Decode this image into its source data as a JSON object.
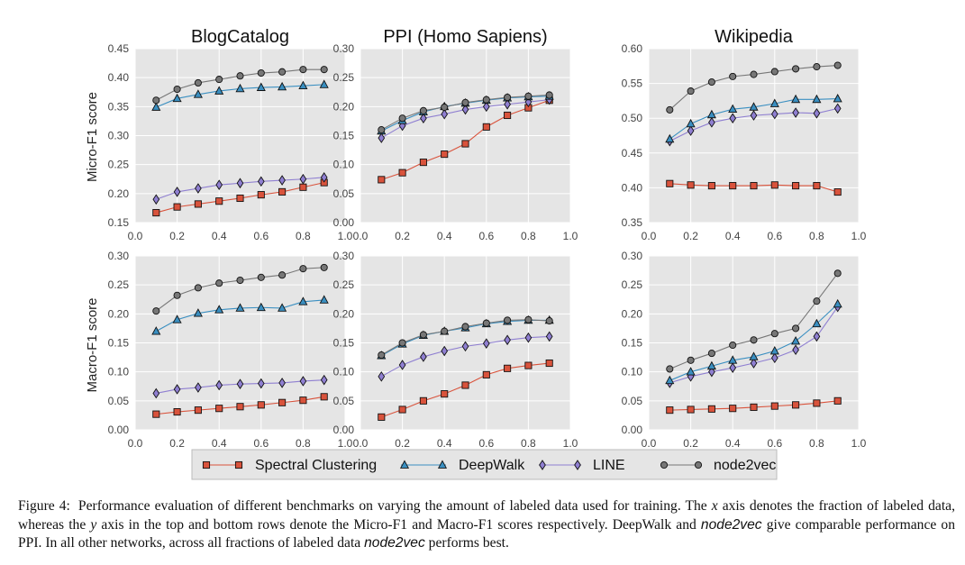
{
  "figure": {
    "row_ylabels": [
      "Micro-F1 score",
      "Macro-F1 score"
    ],
    "legend": [
      {
        "name": "Spectral Clustering",
        "color": "#d9533c",
        "marker": "square"
      },
      {
        "name": "DeepWalk",
        "color": "#3a8fc1",
        "marker": "triangle"
      },
      {
        "name": "LINE",
        "color": "#8f7fd1",
        "marker": "diamond"
      },
      {
        "name": "node2vec",
        "color": "#777777",
        "marker": "circle"
      }
    ]
  },
  "chart_data": [
    {
      "type": "line",
      "title": "BlogCatalog",
      "metric": "Micro-F1",
      "x": [
        0.1,
        0.2,
        0.3,
        0.4,
        0.5,
        0.6,
        0.7,
        0.8,
        0.9
      ],
      "xlim": [
        0.0,
        1.0
      ],
      "ylim": [
        0.15,
        0.45
      ],
      "xticks": [
        "0.0",
        "0.2",
        "0.4",
        "0.6",
        "0.8",
        "1.0"
      ],
      "yticks": [
        "0.15",
        "0.20",
        "0.25",
        "0.30",
        "0.35",
        "0.40",
        "0.45"
      ],
      "series": [
        {
          "name": "Spectral Clustering",
          "values": [
            0.167,
            0.177,
            0.182,
            0.187,
            0.192,
            0.198,
            0.203,
            0.211,
            0.219
          ]
        },
        {
          "name": "DeepWalk",
          "values": [
            0.349,
            0.364,
            0.371,
            0.377,
            0.381,
            0.383,
            0.384,
            0.386,
            0.388
          ]
        },
        {
          "name": "LINE",
          "values": [
            0.19,
            0.203,
            0.209,
            0.215,
            0.218,
            0.221,
            0.223,
            0.225,
            0.228
          ]
        },
        {
          "name": "node2vec",
          "values": [
            0.361,
            0.38,
            0.391,
            0.397,
            0.403,
            0.408,
            0.41,
            0.414,
            0.414
          ]
        }
      ]
    },
    {
      "type": "line",
      "title": "PPI (Homo Sapiens)",
      "metric": "Micro-F1",
      "x": [
        0.1,
        0.2,
        0.3,
        0.4,
        0.5,
        0.6,
        0.7,
        0.8,
        0.9
      ],
      "xlim": [
        0.0,
        1.0
      ],
      "ylim": [
        0.0,
        0.3
      ],
      "xticks": [
        "0.0",
        "0.2",
        "0.4",
        "0.6",
        "0.8",
        "1.0"
      ],
      "yticks": [
        "0.00",
        "0.05",
        "0.10",
        "0.15",
        "0.20",
        "0.25",
        "0.30"
      ],
      "series": [
        {
          "name": "Spectral Clustering",
          "values": [
            0.074,
            0.086,
            0.104,
            0.118,
            0.136,
            0.165,
            0.185,
            0.198,
            0.211
          ]
        },
        {
          "name": "DeepWalk",
          "values": [
            0.158,
            0.176,
            0.191,
            0.2,
            0.206,
            0.211,
            0.215,
            0.217,
            0.218
          ]
        },
        {
          "name": "LINE",
          "values": [
            0.146,
            0.167,
            0.18,
            0.187,
            0.195,
            0.2,
            0.204,
            0.208,
            0.212
          ]
        },
        {
          "name": "node2vec",
          "values": [
            0.16,
            0.18,
            0.193,
            0.199,
            0.207,
            0.212,
            0.216,
            0.218,
            0.22
          ]
        }
      ]
    },
    {
      "type": "line",
      "title": "Wikipedia",
      "metric": "Micro-F1",
      "x": [
        0.1,
        0.2,
        0.3,
        0.4,
        0.5,
        0.6,
        0.7,
        0.8,
        0.9
      ],
      "xlim": [
        0.0,
        1.0
      ],
      "ylim": [
        0.35,
        0.6
      ],
      "xticks": [
        "0.0",
        "0.2",
        "0.4",
        "0.6",
        "0.8",
        "1.0"
      ],
      "yticks": [
        "0.35",
        "0.40",
        "0.45",
        "0.50",
        "0.55",
        "0.60"
      ],
      "series": [
        {
          "name": "Spectral Clustering",
          "values": [
            0.406,
            0.404,
            0.403,
            0.403,
            0.403,
            0.404,
            0.403,
            0.403,
            0.394
          ]
        },
        {
          "name": "DeepWalk",
          "values": [
            0.47,
            0.492,
            0.505,
            0.513,
            0.516,
            0.521,
            0.527,
            0.527,
            0.528
          ]
        },
        {
          "name": "LINE",
          "values": [
            0.467,
            0.482,
            0.494,
            0.5,
            0.504,
            0.506,
            0.508,
            0.507,
            0.514
          ]
        },
        {
          "name": "node2vec",
          "values": [
            0.512,
            0.539,
            0.552,
            0.56,
            0.563,
            0.567,
            0.571,
            0.574,
            0.576
          ]
        }
      ]
    },
    {
      "type": "line",
      "title": "",
      "metric": "Macro-F1",
      "x": [
        0.1,
        0.2,
        0.3,
        0.4,
        0.5,
        0.6,
        0.7,
        0.8,
        0.9
      ],
      "xlim": [
        0.0,
        1.0
      ],
      "ylim": [
        0.0,
        0.3
      ],
      "xticks": [
        "0.0",
        "0.2",
        "0.4",
        "0.6",
        "0.8",
        "1.0"
      ],
      "yticks": [
        "0.00",
        "0.05",
        "0.10",
        "0.15",
        "0.20",
        "0.25",
        "0.30"
      ],
      "series": [
        {
          "name": "Spectral Clustering",
          "values": [
            0.027,
            0.031,
            0.034,
            0.037,
            0.04,
            0.043,
            0.047,
            0.051,
            0.057
          ]
        },
        {
          "name": "DeepWalk",
          "values": [
            0.17,
            0.19,
            0.201,
            0.207,
            0.21,
            0.211,
            0.21,
            0.221,
            0.224
          ]
        },
        {
          "name": "LINE",
          "values": [
            0.063,
            0.07,
            0.073,
            0.077,
            0.079,
            0.08,
            0.081,
            0.084,
            0.086
          ]
        },
        {
          "name": "node2vec",
          "values": [
            0.205,
            0.232,
            0.245,
            0.253,
            0.258,
            0.263,
            0.267,
            0.278,
            0.28
          ]
        }
      ]
    },
    {
      "type": "line",
      "title": "",
      "metric": "Macro-F1",
      "x": [
        0.1,
        0.2,
        0.3,
        0.4,
        0.5,
        0.6,
        0.7,
        0.8,
        0.9
      ],
      "xlim": [
        0.0,
        1.0
      ],
      "ylim": [
        0.0,
        0.3
      ],
      "xticks": [
        "0.0",
        "0.2",
        "0.4",
        "0.6",
        "0.8",
        "1.0"
      ],
      "yticks": [
        "0.00",
        "0.05",
        "0.10",
        "0.15",
        "0.20",
        "0.25",
        "0.30"
      ],
      "series": [
        {
          "name": "Spectral Clustering",
          "values": [
            0.022,
            0.035,
            0.05,
            0.062,
            0.077,
            0.095,
            0.106,
            0.111,
            0.115
          ]
        },
        {
          "name": "DeepWalk",
          "values": [
            0.128,
            0.148,
            0.163,
            0.17,
            0.176,
            0.183,
            0.187,
            0.189,
            0.189
          ]
        },
        {
          "name": "LINE",
          "values": [
            0.092,
            0.112,
            0.126,
            0.136,
            0.144,
            0.149,
            0.155,
            0.159,
            0.161
          ]
        },
        {
          "name": "node2vec",
          "values": [
            0.129,
            0.15,
            0.164,
            0.17,
            0.178,
            0.184,
            0.189,
            0.19,
            0.188
          ]
        }
      ]
    },
    {
      "type": "line",
      "title": "",
      "metric": "Macro-F1",
      "x": [
        0.1,
        0.2,
        0.3,
        0.4,
        0.5,
        0.6,
        0.7,
        0.8,
        0.9
      ],
      "xlim": [
        0.0,
        1.0
      ],
      "ylim": [
        0.0,
        0.3
      ],
      "xticks": [
        "0.0",
        "0.2",
        "0.4",
        "0.6",
        "0.8",
        "1.0"
      ],
      "yticks": [
        "0.00",
        "0.05",
        "0.10",
        "0.15",
        "0.20",
        "0.25",
        "0.30"
      ],
      "series": [
        {
          "name": "Spectral Clustering",
          "values": [
            0.034,
            0.035,
            0.036,
            0.037,
            0.039,
            0.041,
            0.043,
            0.046,
            0.05
          ]
        },
        {
          "name": "DeepWalk",
          "values": [
            0.085,
            0.1,
            0.11,
            0.12,
            0.126,
            0.136,
            0.153,
            0.183,
            0.217
          ]
        },
        {
          "name": "LINE",
          "values": [
            0.081,
            0.092,
            0.1,
            0.107,
            0.115,
            0.124,
            0.138,
            0.161,
            0.212
          ]
        },
        {
          "name": "node2vec",
          "values": [
            0.105,
            0.12,
            0.132,
            0.146,
            0.155,
            0.166,
            0.175,
            0.222,
            0.27
          ]
        }
      ]
    }
  ],
  "caption": {
    "label": "Figure 4:",
    "seg1": "Performance evaluation of different benchmarks on varying the amount of labeled data used for training. The",
    "x_var": "x",
    "seg2": "axis denotes the fraction of labeled data, whereas the",
    "y_var": "y",
    "seg3": "axis in the top and bottom rows denote the Micro-F1 and Macro-F1 scores respectively. DeepWalk and",
    "n2v_a": "node2vec",
    "seg4": "give comparable performance on PPI. In all other networks, across all fractions of labeled data",
    "n2v_b": "node2vec",
    "seg5": "performs best."
  }
}
